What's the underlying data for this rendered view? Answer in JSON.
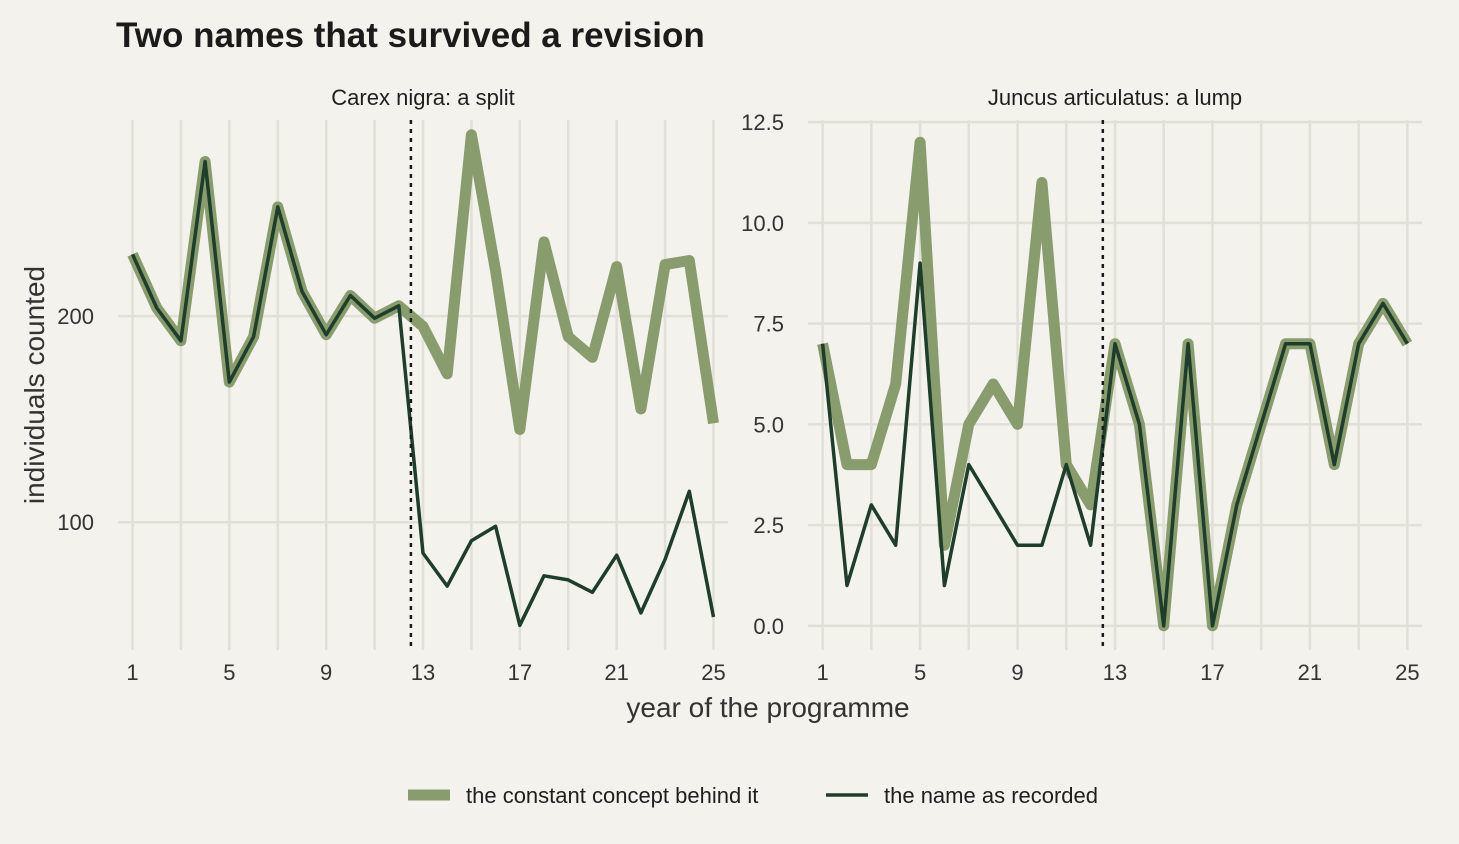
{
  "chart_data": {
    "title": "Two names that survived a revision",
    "xlabel": "year of the programme",
    "ylabel": "individuals counted",
    "type": "line",
    "colors": {
      "concept": "#889c6e",
      "recorded": "#1f3d2b",
      "background": "#f3f2ec"
    },
    "legend": {
      "position": "bottom",
      "entries": [
        {
          "key": "concept",
          "label": "the constant concept behind it"
        },
        {
          "key": "recorded",
          "label": "the name as recorded"
        }
      ]
    },
    "panels": [
      {
        "strip": "Carex nigra: a split",
        "xlim": [
          0.4,
          25.6
        ],
        "ylim": [
          38,
          300
        ],
        "x_ticks": [
          1,
          5,
          9,
          13,
          17,
          21,
          25
        ],
        "y_ticks": [
          100,
          200
        ],
        "y_tick_labels": [
          "100",
          "200"
        ],
        "x_grid": [
          1,
          3,
          5,
          7,
          9,
          11,
          13,
          15,
          17,
          19,
          21,
          23,
          25
        ],
        "y_grid": [
          100,
          200
        ],
        "revision_year": 12.5,
        "x": [
          1,
          2,
          3,
          4,
          5,
          6,
          7,
          8,
          9,
          10,
          11,
          12,
          13,
          14,
          15,
          16,
          17,
          18,
          19,
          20,
          21,
          22,
          23,
          24,
          25
        ],
        "series": [
          {
            "key": "concept",
            "values": [
              230,
              204,
              188,
              275,
              168,
              190,
              253,
              212,
              191,
              210,
              199,
              205,
              195,
              172,
              288,
              222,
              145,
              236,
              190,
              180,
              224,
              155,
              225,
              227,
              148
            ]
          },
          {
            "key": "recorded",
            "values": [
              230,
              204,
              188,
              275,
              168,
              190,
              253,
              212,
              191,
              210,
              199,
              205,
              85,
              69,
              91,
              98,
              50,
              74,
              72,
              66,
              84,
              56,
              82,
              115,
              54
            ]
          }
        ]
      },
      {
        "strip": "Juncus articulatus: a lump",
        "xlim": [
          0.4,
          25.6
        ],
        "ylim": [
          -0.6,
          12.8
        ],
        "x_ticks": [
          1,
          5,
          9,
          13,
          17,
          21,
          25
        ],
        "y_ticks": [
          0,
          2.5,
          5,
          7.5,
          10,
          12.5
        ],
        "y_tick_labels": [
          "0.0",
          "2.5",
          "5.0",
          "7.5",
          "10.0",
          "12.5"
        ],
        "x_grid": [
          1,
          3,
          5,
          7,
          9,
          11,
          13,
          15,
          17,
          19,
          21,
          23,
          25
        ],
        "y_grid": [
          0,
          2.5,
          5,
          7.5,
          10,
          12.5
        ],
        "revision_year": 12.5,
        "x": [
          1,
          2,
          3,
          4,
          5,
          6,
          7,
          8,
          9,
          10,
          11,
          12,
          13,
          14,
          15,
          16,
          17,
          18,
          19,
          20,
          21,
          22,
          23,
          24,
          25
        ],
        "series": [
          {
            "key": "concept",
            "values": [
              7,
              4,
              4,
              6,
              12,
              2,
              5,
              6,
              5,
              11,
              4,
              3,
              7,
              5,
              0,
              7,
              0,
              3,
              5,
              7,
              7,
              4,
              7,
              8,
              7
            ]
          },
          {
            "key": "recorded",
            "values": [
              7,
              1,
              3,
              2,
              9,
              1,
              4,
              3,
              2,
              2,
              4,
              2,
              7,
              5,
              0,
              7,
              0,
              3,
              5,
              7,
              7,
              4,
              7,
              8,
              7
            ]
          }
        ]
      }
    ]
  }
}
